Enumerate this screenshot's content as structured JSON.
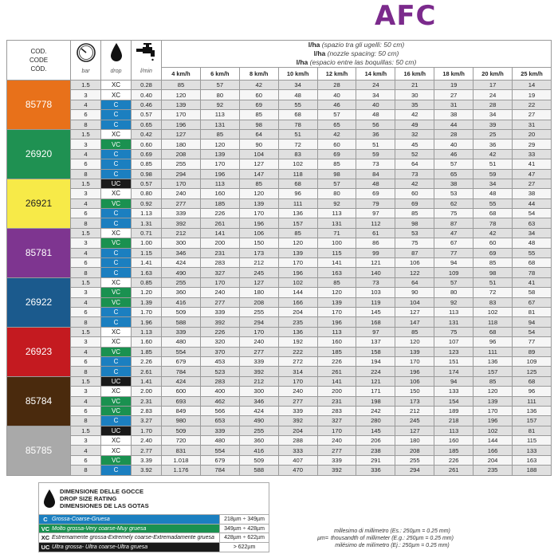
{
  "brand": "AFC",
  "header": {
    "code": [
      "COD.",
      "CODE",
      "CÓD."
    ],
    "bar": "bar",
    "drop": "drop",
    "lmin": "l/min",
    "lha": [
      {
        "b": "l/ha",
        "i": " (spazio tra gli ugelli: 50 cm)"
      },
      {
        "b": "l/ha",
        "i": " (nozzle spacing: 50 cm)"
      },
      {
        "b": "l/ha",
        "i": " (espacio entre las boquillas: 50 cm)"
      }
    ],
    "speeds": [
      "4 km/h",
      "6 km/h",
      "8 km/h",
      "10 km/h",
      "12 km/h",
      "14 km/h",
      "16 km/h",
      "18 km/h",
      "20 km/h",
      "25 km/h"
    ],
    "icons": [
      "pressure-gauge-icon",
      "drop-icon",
      "faucet-icon"
    ]
  },
  "drop_colors": {
    "C": "#1b7fc0",
    "VC": "#1a9150",
    "XC": "#ffffff",
    "UC": "#1a1a1a"
  },
  "groups": [
    {
      "code": "85778",
      "color": "#e8711a",
      "rows": [
        [
          "1.5",
          "XC",
          "0.28",
          "85",
          "57",
          "42",
          "34",
          "28",
          "24",
          "21",
          "19",
          "17",
          "14"
        ],
        [
          "3",
          "XC",
          "0.40",
          "120",
          "80",
          "60",
          "48",
          "40",
          "34",
          "30",
          "27",
          "24",
          "19"
        ],
        [
          "4",
          "C",
          "0.46",
          "139",
          "92",
          "69",
          "55",
          "46",
          "40",
          "35",
          "31",
          "28",
          "22"
        ],
        [
          "6",
          "C",
          "0.57",
          "170",
          "113",
          "85",
          "68",
          "57",
          "48",
          "42",
          "38",
          "34",
          "27"
        ],
        [
          "8",
          "C",
          "0.65",
          "196",
          "131",
          "98",
          "78",
          "65",
          "56",
          "49",
          "44",
          "39",
          "31"
        ]
      ]
    },
    {
      "code": "26920",
      "color": "#1f9152",
      "rows": [
        [
          "1.5",
          "XC",
          "0.42",
          "127",
          "85",
          "64",
          "51",
          "42",
          "36",
          "32",
          "28",
          "25",
          "20"
        ],
        [
          "3",
          "VC",
          "0.60",
          "180",
          "120",
          "90",
          "72",
          "60",
          "51",
          "45",
          "40",
          "36",
          "29"
        ],
        [
          "4",
          "C",
          "0.69",
          "208",
          "139",
          "104",
          "83",
          "69",
          "59",
          "52",
          "46",
          "42",
          "33"
        ],
        [
          "6",
          "C",
          "0.85",
          "255",
          "170",
          "127",
          "102",
          "85",
          "73",
          "64",
          "57",
          "51",
          "41"
        ],
        [
          "8",
          "C",
          "0.98",
          "294",
          "196",
          "147",
          "118",
          "98",
          "84",
          "73",
          "65",
          "59",
          "47"
        ]
      ]
    },
    {
      "code": "26921",
      "color": "#f7ea48",
      "dark": true,
      "rows": [
        [
          "1.5",
          "UC",
          "0.57",
          "170",
          "113",
          "85",
          "68",
          "57",
          "48",
          "42",
          "38",
          "34",
          "27"
        ],
        [
          "3",
          "XC",
          "0.80",
          "240",
          "160",
          "120",
          "96",
          "80",
          "69",
          "60",
          "53",
          "48",
          "38"
        ],
        [
          "4",
          "VC",
          "0.92",
          "277",
          "185",
          "139",
          "111",
          "92",
          "79",
          "69",
          "62",
          "55",
          "44"
        ],
        [
          "6",
          "C",
          "1.13",
          "339",
          "226",
          "170",
          "136",
          "113",
          "97",
          "85",
          "75",
          "68",
          "54"
        ],
        [
          "8",
          "C",
          "1.31",
          "392",
          "261",
          "196",
          "157",
          "131",
          "112",
          "98",
          "87",
          "78",
          "63"
        ]
      ]
    },
    {
      "code": "85781",
      "color": "#7e3590",
      "rows": [
        [
          "1.5",
          "XC",
          "0.71",
          "212",
          "141",
          "106",
          "85",
          "71",
          "61",
          "53",
          "47",
          "42",
          "34"
        ],
        [
          "3",
          "VC",
          "1.00",
          "300",
          "200",
          "150",
          "120",
          "100",
          "86",
          "75",
          "67",
          "60",
          "48"
        ],
        [
          "4",
          "C",
          "1.15",
          "346",
          "231",
          "173",
          "139",
          "115",
          "99",
          "87",
          "77",
          "69",
          "55"
        ],
        [
          "6",
          "C",
          "1.41",
          "424",
          "283",
          "212",
          "170",
          "141",
          "121",
          "106",
          "94",
          "85",
          "68"
        ],
        [
          "8",
          "C",
          "1.63",
          "490",
          "327",
          "245",
          "196",
          "163",
          "140",
          "122",
          "109",
          "98",
          "78"
        ]
      ]
    },
    {
      "code": "26922",
      "color": "#1b5a8d",
      "rows": [
        [
          "1.5",
          "XC",
          "0.85",
          "255",
          "170",
          "127",
          "102",
          "85",
          "73",
          "64",
          "57",
          "51",
          "41"
        ],
        [
          "3",
          "VC",
          "1.20",
          "360",
          "240",
          "180",
          "144",
          "120",
          "103",
          "90",
          "80",
          "72",
          "58"
        ],
        [
          "4",
          "VC",
          "1.39",
          "416",
          "277",
          "208",
          "166",
          "139",
          "119",
          "104",
          "92",
          "83",
          "67"
        ],
        [
          "6",
          "C",
          "1.70",
          "509",
          "339",
          "255",
          "204",
          "170",
          "145",
          "127",
          "113",
          "102",
          "81"
        ],
        [
          "8",
          "C",
          "1.96",
          "588",
          "392",
          "294",
          "235",
          "196",
          "168",
          "147",
          "131",
          "118",
          "94"
        ]
      ]
    },
    {
      "code": "26923",
      "color": "#c41a20",
      "rows": [
        [
          "1.5",
          "XC",
          "1.13",
          "339",
          "226",
          "170",
          "136",
          "113",
          "97",
          "85",
          "75",
          "68",
          "54"
        ],
        [
          "3",
          "XC",
          "1.60",
          "480",
          "320",
          "240",
          "192",
          "160",
          "137",
          "120",
          "107",
          "96",
          "77"
        ],
        [
          "4",
          "VC",
          "1.85",
          "554",
          "370",
          "277",
          "222",
          "185",
          "158",
          "139",
          "123",
          "111",
          "89"
        ],
        [
          "6",
          "C",
          "2.26",
          "679",
          "453",
          "339",
          "272",
          "226",
          "194",
          "170",
          "151",
          "136",
          "109"
        ],
        [
          "8",
          "C",
          "2.61",
          "784",
          "523",
          "392",
          "314",
          "261",
          "224",
          "196",
          "174",
          "157",
          "125"
        ]
      ]
    },
    {
      "code": "85784",
      "color": "#4a2a0d",
      "rows": [
        [
          "1.5",
          "UC",
          "1.41",
          "424",
          "283",
          "212",
          "170",
          "141",
          "121",
          "106",
          "94",
          "85",
          "68"
        ],
        [
          "3",
          "XC",
          "2.00",
          "600",
          "400",
          "300",
          "240",
          "200",
          "171",
          "150",
          "133",
          "120",
          "96"
        ],
        [
          "4",
          "VC",
          "2.31",
          "693",
          "462",
          "346",
          "277",
          "231",
          "198",
          "173",
          "154",
          "139",
          "111"
        ],
        [
          "6",
          "VC",
          "2.83",
          "849",
          "566",
          "424",
          "339",
          "283",
          "242",
          "212",
          "189",
          "170",
          "136"
        ],
        [
          "8",
          "C",
          "3.27",
          "980",
          "653",
          "490",
          "392",
          "327",
          "280",
          "245",
          "218",
          "196",
          "157"
        ]
      ]
    },
    {
      "code": "85785",
      "color": "#a9a9a9",
      "rows": [
        [
          "1.5",
          "UC",
          "1.70",
          "509",
          "339",
          "255",
          "204",
          "170",
          "145",
          "127",
          "113",
          "102",
          "81"
        ],
        [
          "3",
          "XC",
          "2.40",
          "720",
          "480",
          "360",
          "288",
          "240",
          "206",
          "180",
          "160",
          "144",
          "115"
        ],
        [
          "4",
          "XC",
          "2.77",
          "831",
          "554",
          "416",
          "333",
          "277",
          "238",
          "208",
          "185",
          "166",
          "133"
        ],
        [
          "6",
          "VC",
          "3.39",
          "1.018",
          "679",
          "509",
          "407",
          "339",
          "291",
          "255",
          "226",
          "204",
          "163"
        ],
        [
          "8",
          "C",
          "3.92",
          "1.176",
          "784",
          "588",
          "470",
          "392",
          "336",
          "294",
          "261",
          "235",
          "188"
        ]
      ]
    }
  ],
  "legend": {
    "title": [
      "DIMENSIONE DELLE GOCCE",
      "DROP SIZE RATING",
      "DIMENSIONES DE LAS GOTAS"
    ],
    "items": [
      {
        "k": "C",
        "d": "Grossa-Coarse-Gruesa",
        "r": "218µm ÷ 349µm"
      },
      {
        "k": "VC",
        "d": "Molto grossa-Very coarse-Muy gruesa",
        "r": "349µm ÷ 428µm"
      },
      {
        "k": "XC",
        "d": "Estremamente grossa-Extremely coarse-Extremadamente gruesa",
        "r": "428µm ÷ 622µm"
      },
      {
        "k": "UC",
        "d": "Ultra grossa- Ultra coarse-Ultra gruesa",
        "r": "> 622µm"
      }
    ]
  },
  "micron": {
    "symbol": "µm=",
    "lines": [
      "millesimo di millimetro (Es.: 250µm = 0.25 mm)",
      "thousandth of millimeter (E.g.: 250µm = 0.25 mm)",
      "milésimo de milímetro (Ej.: 250µm = 0.25 mm)"
    ]
  }
}
